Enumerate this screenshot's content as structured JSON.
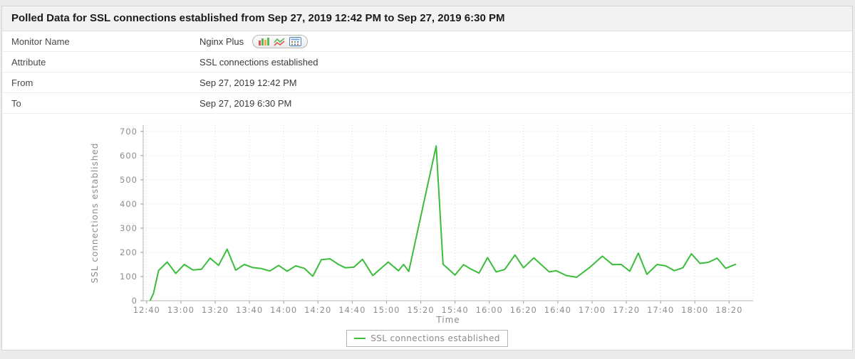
{
  "panel": {
    "title": "Polled Data for SSL connections established from Sep 27, 2019 12:42 PM to Sep 27, 2019 6:30 PM",
    "rows": [
      {
        "label": "Monitor Name",
        "value": "Nginx Plus"
      },
      {
        "label": "Attribute",
        "value": "SSL connections established"
      },
      {
        "label": "From",
        "value": "Sep 27, 2019 12:42 PM"
      },
      {
        "label": "To",
        "value": "Sep 27, 2019 6:30 PM"
      }
    ],
    "monitor_view_icons": [
      "bar-chart-icon",
      "line-chart-icon",
      "data-table-icon"
    ]
  },
  "colors": {
    "series_green": "#3bbd3b",
    "panel_border": "#d5d5d5",
    "titlebar_bg": "#f2f2f2",
    "page_bg": "#ebebeb",
    "tick_text": "#8c8c8c"
  },
  "chart_data": {
    "type": "line",
    "title": "",
    "xlabel": "Time",
    "ylabel": "SSL connections established",
    "ylim": [
      0,
      726
    ],
    "y_ticks": [
      0,
      100,
      200,
      300,
      400,
      500,
      600,
      700
    ],
    "x_ticks": [
      "12:40",
      "13:00",
      "13:20",
      "13:40",
      "14:00",
      "14:20",
      "14:40",
      "15:00",
      "15:20",
      "15:40",
      "16:00",
      "16:20",
      "16:40",
      "17:00",
      "17:20",
      "17:40",
      "18:00",
      "18:20"
    ],
    "x_domain_minutes": [
      758,
      1114
    ],
    "grid": true,
    "legend": {
      "position": "bottom",
      "entries": [
        {
          "label": "SSL connections established",
          "color": "#3bbd3b"
        }
      ]
    },
    "series": [
      {
        "name": "SSL connections established",
        "color": "#3bbd3b",
        "points": [
          [
            "12:42",
            0
          ],
          [
            "12:44",
            30
          ],
          [
            "12:47",
            125
          ],
          [
            "12:52",
            160
          ],
          [
            "12:57",
            113
          ],
          [
            "13:02",
            150
          ],
          [
            "13:07",
            127
          ],
          [
            "13:12",
            130
          ],
          [
            "13:17",
            176
          ],
          [
            "13:22",
            146
          ],
          [
            "13:27",
            213
          ],
          [
            "13:32",
            126
          ],
          [
            "13:37",
            150
          ],
          [
            "13:42",
            137
          ],
          [
            "13:47",
            133
          ],
          [
            "13:52",
            123
          ],
          [
            "13:57",
            146
          ],
          [
            "14:02",
            122
          ],
          [
            "14:07",
            144
          ],
          [
            "14:12",
            134
          ],
          [
            "14:17",
            101
          ],
          [
            "14:22",
            170
          ],
          [
            "14:27",
            173
          ],
          [
            "14:32",
            150
          ],
          [
            "14:36",
            136
          ],
          [
            "14:41",
            139
          ],
          [
            "14:46",
            171
          ],
          [
            "14:52",
            104
          ],
          [
            "15:01",
            160
          ],
          [
            "15:07",
            124
          ],
          [
            "15:10",
            150
          ],
          [
            "15:13",
            121
          ],
          [
            "15:29",
            640
          ],
          [
            "15:33",
            151
          ],
          [
            "15:40",
            106
          ],
          [
            "15:45",
            149
          ],
          [
            "15:49",
            132
          ],
          [
            "15:54",
            114
          ],
          [
            "15:59",
            178
          ],
          [
            "16:04",
            119
          ],
          [
            "16:09",
            129
          ],
          [
            "16:15",
            189
          ],
          [
            "16:20",
            136
          ],
          [
            "16:26",
            177
          ],
          [
            "16:35",
            119
          ],
          [
            "16:39",
            124
          ],
          [
            "16:45",
            104
          ],
          [
            "16:51",
            97
          ],
          [
            "16:59",
            140
          ],
          [
            "17:06",
            184
          ],
          [
            "17:12",
            149
          ],
          [
            "17:17",
            150
          ],
          [
            "17:22",
            122
          ],
          [
            "17:27",
            197
          ],
          [
            "17:32",
            109
          ],
          [
            "17:38",
            150
          ],
          [
            "17:43",
            144
          ],
          [
            "17:48",
            124
          ],
          [
            "17:53",
            136
          ],
          [
            "17:58",
            194
          ],
          [
            "18:03",
            154
          ],
          [
            "18:08",
            159
          ],
          [
            "18:13",
            176
          ],
          [
            "18:18",
            134
          ],
          [
            "18:24",
            151
          ]
        ]
      }
    ]
  }
}
